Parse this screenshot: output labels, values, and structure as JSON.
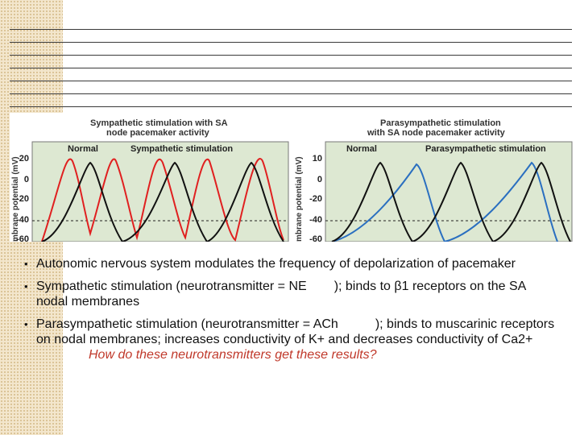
{
  "figure": {
    "left_panel": {
      "title_line1": "Sympathetic stimulation with SA",
      "title_line2": "node pacemaker activity",
      "ylabel": "mbrane potential (mV)",
      "yticks": [
        "20",
        "0",
        "-20",
        "-40",
        "-60"
      ],
      "label_normal": "Normal",
      "label_stim": "Sympathetic stimulation",
      "colors": {
        "normal": "#111111",
        "stim": "#e02020",
        "bg": "#dde8d2"
      }
    },
    "right_panel": {
      "title_line1": "Parasympathetic stimulation",
      "title_line2": "with SA node pacemaker activity",
      "ylabel": "mbrane potential (mV)",
      "yticks": [
        "10",
        "0",
        "-20",
        "-40",
        "-60"
      ],
      "label_normal": "Normal",
      "label_stim": "Parasympathetic stimulation",
      "colors": {
        "normal": "#111111",
        "stim": "#2a6fc0",
        "bg": "#dde8d2"
      }
    }
  },
  "bullets": [
    {
      "text": "Autonomic nervous system modulates the frequency of depolarization of pacemaker"
    },
    {
      "pre": "Sympathetic stimulation (neurotransmitter = NE",
      "post": "); binds to β1 receptors on the SA nodal membranes"
    },
    {
      "pre": "Parasympathetic stimulation (neurotransmitter = ACh",
      "post": "); binds to muscarinic receptors on nodal membranes; increases conductivity of K+ and decreases conductivity of Ca2+"
    }
  ],
  "question": "How do these neurotransmitters get these results?",
  "bullet_symbol": "•"
}
